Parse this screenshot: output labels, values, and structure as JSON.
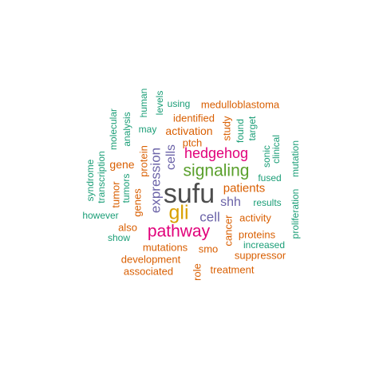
{
  "colors": {
    "dark": "#4d4d4d",
    "olive": "#d9a000",
    "magenta": "#e1007a",
    "green": "#5aa02c",
    "purple": "#6b63a8",
    "orange": "#d95f02",
    "teal": "#1b9e77"
  },
  "words": [
    {
      "id": "sufu",
      "text": "sufu",
      "color": "dark"
    },
    {
      "id": "gli",
      "text": "gli",
      "color": "olive"
    },
    {
      "id": "pathway",
      "text": "pathway",
      "color": "magenta"
    },
    {
      "id": "signaling",
      "text": "signaling",
      "color": "green"
    },
    {
      "id": "hedgehog",
      "text": "hedgehog",
      "color": "magenta"
    },
    {
      "id": "expression",
      "text": "expression",
      "color": "purple"
    },
    {
      "id": "cells",
      "text": "cells",
      "color": "purple"
    },
    {
      "id": "cell",
      "text": "cell",
      "color": "purple"
    },
    {
      "id": "shh",
      "text": "shh",
      "color": "purple"
    },
    {
      "id": "patients",
      "text": "patients",
      "color": "orange"
    },
    {
      "id": "activation",
      "text": "activation",
      "color": "orange"
    },
    {
      "id": "medulloblastoma",
      "text": "medulloblastoma",
      "color": "orange"
    },
    {
      "id": "identified",
      "text": "identified",
      "color": "orange"
    },
    {
      "id": "ptch",
      "text": "ptch",
      "color": "orange"
    },
    {
      "id": "protein",
      "text": "protein",
      "color": "orange"
    },
    {
      "id": "gene",
      "text": "gene",
      "color": "orange"
    },
    {
      "id": "genes",
      "text": "genes",
      "color": "orange"
    },
    {
      "id": "tumor",
      "text": "tumor",
      "color": "orange"
    },
    {
      "id": "also",
      "text": "also",
      "color": "orange"
    },
    {
      "id": "activity",
      "text": "activity",
      "color": "orange"
    },
    {
      "id": "proteins",
      "text": "proteins",
      "color": "orange"
    },
    {
      "id": "cancer",
      "text": "cancer",
      "color": "orange"
    },
    {
      "id": "mutations",
      "text": "mutations",
      "color": "orange"
    },
    {
      "id": "smo",
      "text": "smo",
      "color": "orange"
    },
    {
      "id": "development",
      "text": "development",
      "color": "orange"
    },
    {
      "id": "suppressor",
      "text": "suppressor",
      "color": "orange"
    },
    {
      "id": "associated",
      "text": "associated",
      "color": "orange"
    },
    {
      "id": "role",
      "text": "role",
      "color": "orange"
    },
    {
      "id": "treatment",
      "text": "treatment",
      "color": "orange"
    },
    {
      "id": "study",
      "text": "study",
      "color": "orange"
    },
    {
      "id": "found",
      "text": "found",
      "color": "teal"
    },
    {
      "id": "target",
      "text": "target",
      "color": "teal"
    },
    {
      "id": "using",
      "text": "using",
      "color": "teal"
    },
    {
      "id": "levels",
      "text": "levels",
      "color": "teal"
    },
    {
      "id": "human",
      "text": "human",
      "color": "teal"
    },
    {
      "id": "may",
      "text": "may",
      "color": "teal"
    },
    {
      "id": "analysis",
      "text": "analysis",
      "color": "teal"
    },
    {
      "id": "molecular",
      "text": "molecular",
      "color": "teal"
    },
    {
      "id": "tumors",
      "text": "tumors",
      "color": "teal"
    },
    {
      "id": "transcription",
      "text": "transcription",
      "color": "teal"
    },
    {
      "id": "syndrome",
      "text": "syndrome",
      "color": "teal"
    },
    {
      "id": "however",
      "text": "however",
      "color": "teal"
    },
    {
      "id": "show",
      "text": "show",
      "color": "teal"
    },
    {
      "id": "sonic",
      "text": "sonic",
      "color": "teal"
    },
    {
      "id": "clinical",
      "text": "clinical",
      "color": "teal"
    },
    {
      "id": "fused",
      "text": "fused",
      "color": "teal"
    },
    {
      "id": "results",
      "text": "results",
      "color": "teal"
    },
    {
      "id": "increased",
      "text": "increased",
      "color": "teal"
    },
    {
      "id": "mutation",
      "text": "mutation",
      "color": "teal"
    },
    {
      "id": "proliferation",
      "text": "proliferation",
      "color": "teal"
    }
  ]
}
